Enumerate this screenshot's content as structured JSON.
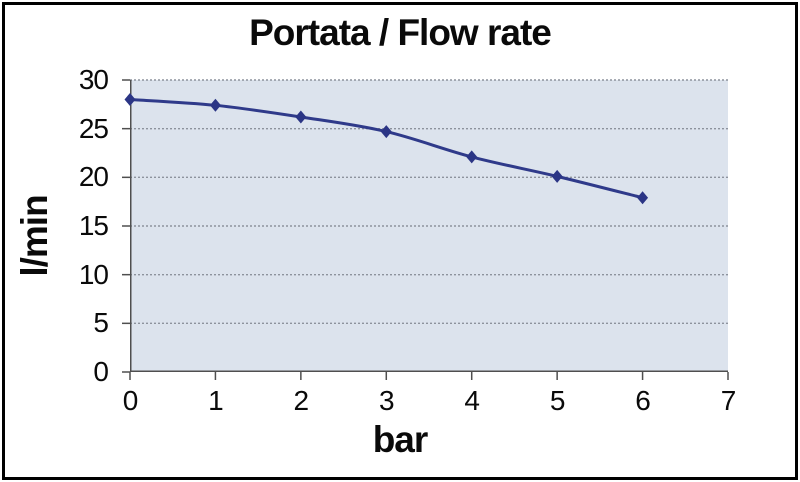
{
  "title": "Portata / Flow rate",
  "chart_data": {
    "type": "line",
    "title": "Portata / Flow rate",
    "xlabel": "bar",
    "ylabel": "l/min",
    "series": [
      {
        "name": "Portata / Flow rate",
        "x": [
          0,
          1,
          2,
          3,
          4,
          5,
          6
        ],
        "values": [
          28,
          27.4,
          26.2,
          24.7,
          22.1,
          20.1,
          17.9
        ]
      }
    ],
    "xlim": [
      0,
      7
    ],
    "ylim": [
      0,
      30
    ],
    "xticks": [
      0,
      1,
      2,
      3,
      4,
      5,
      6,
      7
    ],
    "yticks": [
      0,
      5,
      10,
      15,
      20,
      25,
      30
    ],
    "grid": "horizontal-dotted",
    "legend": "none",
    "marker": "diamond",
    "colors": {
      "line": "#2f3a8a",
      "marker": "#2b3585",
      "plot_background": "#dce3ed",
      "gridline": "#8d939d",
      "axis": "#4f4f4f",
      "text": "#0a0a0a",
      "frame_border": "#000000",
      "page_background": "#ffffff"
    }
  }
}
